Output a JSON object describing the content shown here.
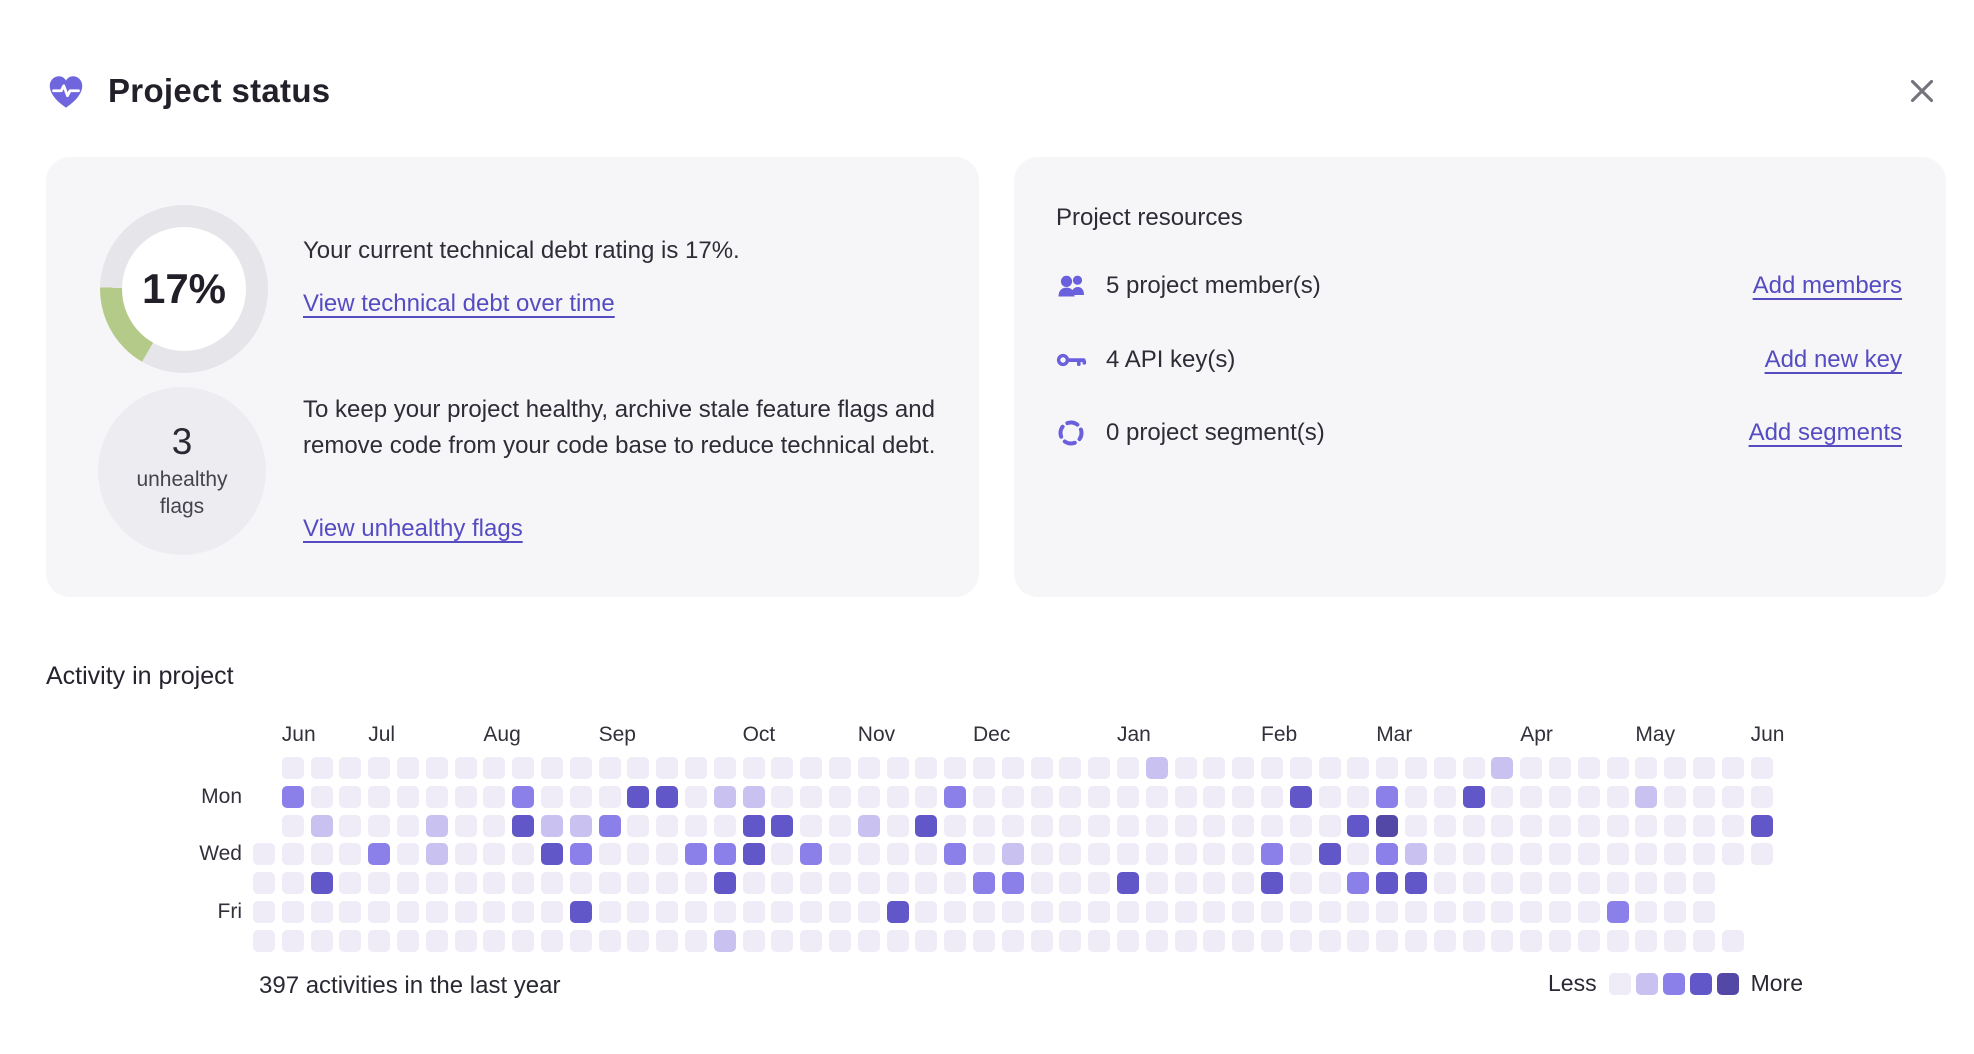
{
  "header": {
    "title": "Project status"
  },
  "debt_card": {
    "gauge_value": "17%",
    "gauge_percent": 17,
    "gauge_color": "#b3ca88",
    "line1": "Your current technical debt rating is 17%.",
    "link1": "View technical debt over time",
    "unhealthy_count": "3",
    "unhealthy_sub": "unhealthy flags",
    "paragraph": "To keep your project healthy, archive stale feature flags and remove code from your code base to reduce technical debt.",
    "link2": "View unhealthy flags"
  },
  "resources_card": {
    "title": "Project resources",
    "rows": [
      {
        "icon": "members-icon",
        "label": "5 project member(s)",
        "action": "Add members"
      },
      {
        "icon": "key-icon",
        "label": "4 API key(s)",
        "action": "Add new key"
      },
      {
        "icon": "segment-icon",
        "label": "0 project segment(s)",
        "action": "Add segments"
      }
    ]
  },
  "activity": {
    "title": "Activity in project",
    "summary": "397 activities in the last year",
    "legend": {
      "less": "Less",
      "more": "More"
    },
    "accent": "#564cc2",
    "colors": {
      "0": "#efecf8",
      "1": "#c9c2f1",
      "2": "#8b80ea",
      "3": "#6157c9",
      "4": "#5448a6"
    },
    "day_labels": [
      {
        "label": "Mon",
        "row": 1
      },
      {
        "label": "Wed",
        "row": 3
      },
      {
        "label": "Fri",
        "row": 5
      }
    ],
    "month_labels": [
      {
        "label": "Jun",
        "col": 1
      },
      {
        "label": "Jul",
        "col": 4
      },
      {
        "label": "Aug",
        "col": 8
      },
      {
        "label": "Sep",
        "col": 12
      },
      {
        "label": "Oct",
        "col": 17
      },
      {
        "label": "Nov",
        "col": 21
      },
      {
        "label": "Dec",
        "col": 25
      },
      {
        "label": "Jan",
        "col": 30
      },
      {
        "label": "Feb",
        "col": 35
      },
      {
        "label": "Mar",
        "col": 39
      },
      {
        "label": "Apr",
        "col": 44
      },
      {
        "label": "May",
        "col": 48
      },
      {
        "label": "Jun",
        "col": 52
      }
    ],
    "chart_data": {
      "type": "heatmap",
      "rows": [
        "Sun",
        "Mon",
        "Tue",
        "Wed",
        "Thu",
        "Fri",
        "Sat"
      ],
      "columns": 53,
      "levels_legend": "0=none 1=low 2=medium 3=high 4=highest, x=no cell",
      "total_label": "397 activities in the last year",
      "grid": [
        "x0000000000000000000000000000001000000000001000000000",
        "x2000000020003301100000020000000000030020030000010000 ",
        "x0100010031120000330010300000000000000340000000000003 ",
        "00002010003200022302000020100000000203021000000000000",
        "003000000000000030000000022000300003002330000000000x ",
        "000000000003000000000030000000000000000000000002000x ",
        "0000000000000000100000000000000000000000000000000000x"
      ]
    }
  }
}
